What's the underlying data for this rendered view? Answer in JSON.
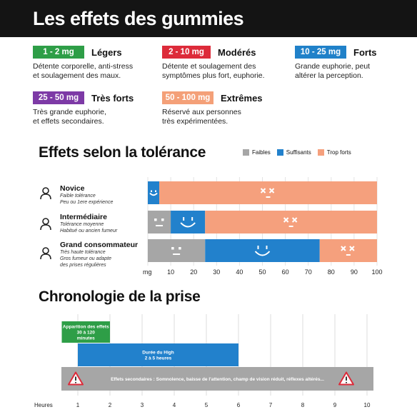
{
  "title": "Les effets des gummies",
  "doses": [
    {
      "range": "1 - 2 mg",
      "level": "Légers",
      "color": "#2e9e47",
      "desc": [
        "Détente corporelle, anti-stress",
        "et soulagement des maux."
      ]
    },
    {
      "range": "2 - 10 mg",
      "level": "Modérés",
      "color": "#dd2b3a",
      "desc": [
        "Détente et soulagement des",
        "symptômes plus fort, euphorie."
      ]
    },
    {
      "range": "10 - 25 mg",
      "level": "Forts",
      "color": "#2081c9",
      "desc": [
        "Grande euphorie, peut",
        "altérer la perception."
      ]
    },
    {
      "range": "25 - 50 mg",
      "level": "Très forts",
      "color": "#7d3aa6",
      "desc": [
        "Très grande euphorie,",
        "et effets secondaires."
      ]
    },
    {
      "range": "50 - 100 mg",
      "level": "Extrêmes",
      "color": "#f4a078",
      "desc": [
        "Réservé aux personnes",
        "très expérimentées."
      ]
    }
  ],
  "colors": {
    "faibles": "#a6a6a6",
    "suffisants": "#2281cc",
    "trop_forts": "#f5a07d",
    "timeline_green": "#2e9e47",
    "timeline_blue": "#2281cc",
    "timeline_gray": "#a6a6a6"
  },
  "chart_data": [
    {
      "type": "bar",
      "orientation": "horizontal",
      "stacked": true,
      "title": "Effets selon la tolérance",
      "legend": [
        "Faibles",
        "Suffisants",
        "Trop forts"
      ],
      "legend_position": "top-right",
      "xlabel": "mg",
      "xlim": [
        0,
        100
      ],
      "xticks": [
        0,
        10,
        20,
        30,
        40,
        50,
        60,
        70,
        80,
        90,
        100
      ],
      "categories": [
        {
          "name": "Novice",
          "sub": [
            "Faible tolérance",
            "Peu ou 1ere expérience"
          ]
        },
        {
          "name": "Intermédiaire",
          "sub": [
            "Tolérance moyenne",
            "Habitué ou ancien fumeur"
          ]
        },
        {
          "name": "Grand consommateur",
          "sub": [
            "Très haute tolérance",
            "Gros fumeur ou adapte",
            "des prises régulières"
          ]
        }
      ],
      "series": [
        {
          "name": "Faibles",
          "values": [
            0,
            10,
            25
          ]
        },
        {
          "name": "Suffisants",
          "values": [
            5,
            15,
            50
          ]
        },
        {
          "name": "Trop forts",
          "values": [
            95,
            75,
            25
          ]
        }
      ],
      "grid": true
    },
    {
      "type": "bar",
      "orientation": "horizontal",
      "subtype": "gantt",
      "title": "Chronologie de la prise",
      "xlabel": "Heures",
      "xlim": [
        0,
        10
      ],
      "xticks": [
        1,
        2,
        3,
        4,
        5,
        6,
        7,
        8,
        9,
        10
      ],
      "bars": [
        {
          "label": [
            "Apparition des effets",
            "30 à 120",
            "minutes"
          ],
          "start": 0.5,
          "end": 2
        },
        {
          "label": [
            "Durée du High",
            "2 à 5 heures"
          ],
          "start": 1,
          "end": 6
        },
        {
          "label": [
            "Effets secondaires : Somnolence, baisse de l'attention, champ de vision réduit, réflexes altérés..."
          ],
          "start": 0,
          "end": 10.2
        }
      ],
      "grid": true
    }
  ]
}
